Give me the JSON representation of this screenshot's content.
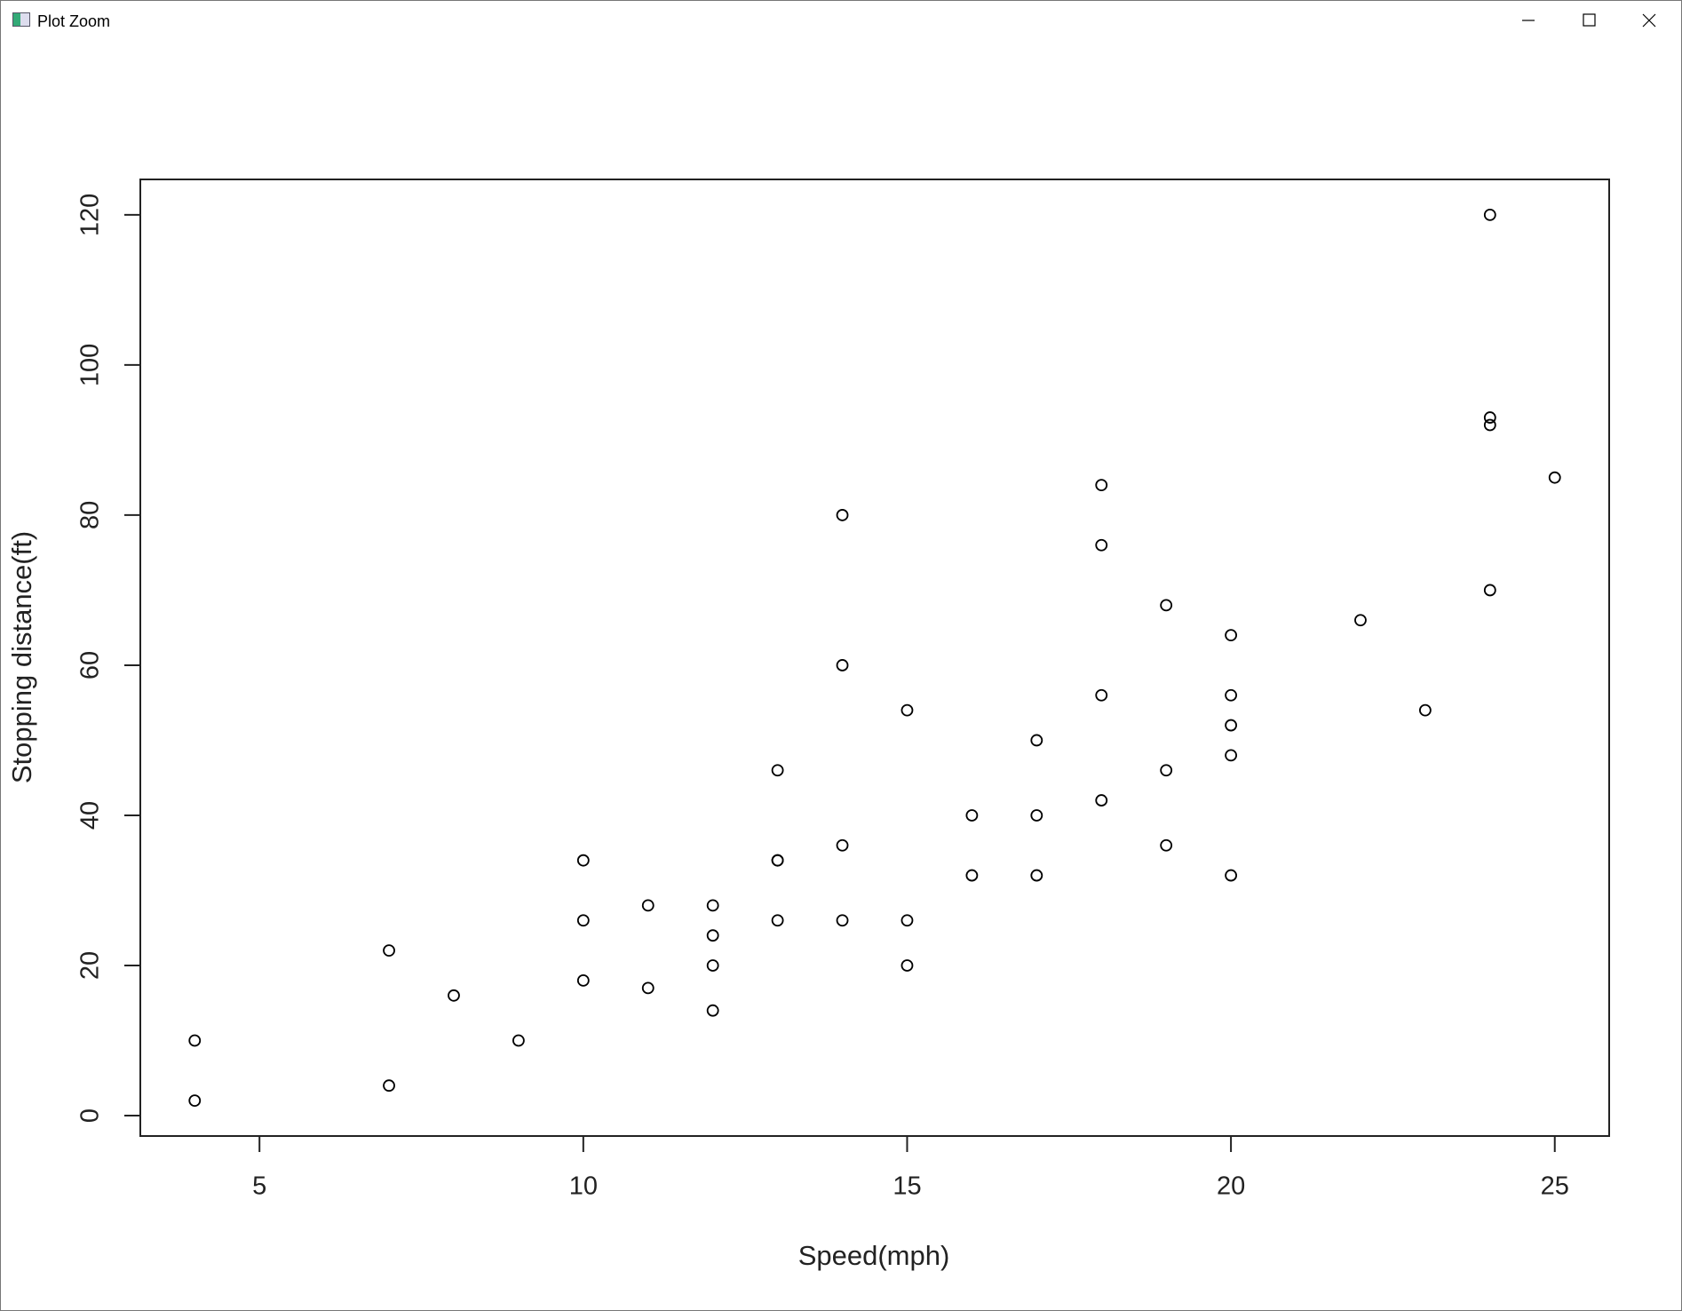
{
  "window": {
    "title": "Plot Zoom"
  },
  "chart_data": {
    "type": "scatter",
    "x_label": "Speed(mph)",
    "y_label": "Stopping distance(ft)",
    "x": [
      4,
      4,
      7,
      7,
      8,
      9,
      10,
      10,
      10,
      11,
      11,
      12,
      12,
      12,
      12,
      13,
      13,
      13,
      13,
      14,
      14,
      14,
      14,
      15,
      15,
      15,
      16,
      16,
      17,
      17,
      17,
      18,
      18,
      18,
      18,
      19,
      19,
      19,
      20,
      20,
      20,
      20,
      20,
      22,
      23,
      24,
      24,
      24,
      24,
      25
    ],
    "series": [
      {
        "color": "#000000",
        "values": [
          2,
          10,
          4,
          22,
          16,
          10,
          18,
          26,
          34,
          17,
          28,
          14,
          20,
          24,
          28,
          26,
          34,
          34,
          46,
          26,
          36,
          60,
          80,
          20,
          26,
          54,
          32,
          40,
          32,
          40,
          50,
          42,
          56,
          76,
          84,
          36,
          46,
          68,
          32,
          48,
          52,
          56,
          64,
          66,
          54,
          70,
          92,
          93,
          120,
          85
        ]
      }
    ],
    "xlim": [
      3.16,
      25.84
    ],
    "ylim": [
      -2.72,
      124.72
    ],
    "xticks": [
      5,
      10,
      15,
      20,
      25
    ],
    "yticks": [
      0,
      20,
      40,
      60,
      80,
      100,
      120
    ],
    "grid": false
  }
}
